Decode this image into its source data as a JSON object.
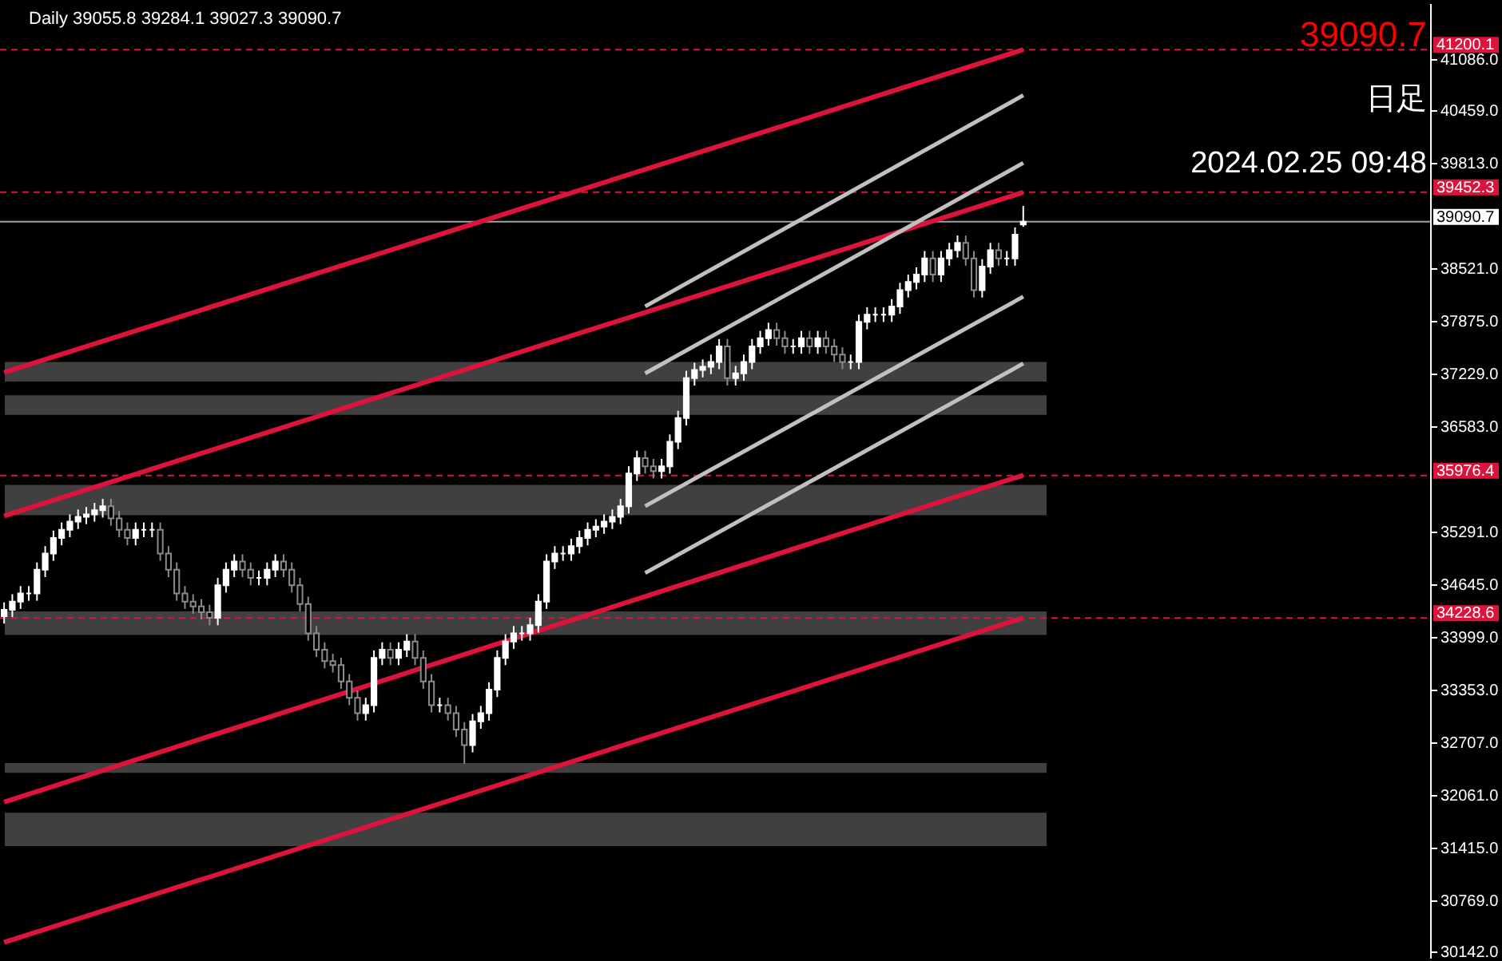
{
  "chart_data": {
    "type": "candlestick",
    "title": "Daily  39055.8 39284.1 39027.3 39090.7",
    "annotations": [
      "39090.7",
      "日足",
      "2024.02.25 09:48"
    ],
    "categories": [
      null,
      null,
      null,
      null,
      null,
      null,
      null,
      null,
      null,
      null,
      null,
      null,
      null,
      null,
      null,
      null,
      null,
      null,
      null,
      null,
      null,
      null,
      null,
      null,
      null,
      null,
      null,
      null,
      null,
      null,
      null,
      null,
      null,
      null,
      null,
      null,
      null,
      null,
      null,
      null,
      null,
      null,
      null,
      null,
      null,
      null,
      null,
      null,
      null,
      null,
      null,
      null,
      null,
      null,
      null,
      null,
      null,
      null,
      null,
      null,
      null,
      null,
      null,
      null,
      null,
      null,
      null,
      null,
      null,
      null,
      null,
      null,
      null,
      null,
      null,
      null,
      null,
      null,
      null,
      null,
      null,
      null,
      null,
      null,
      null,
      null,
      null,
      null,
      null,
      null,
      null,
      null,
      null,
      null,
      null,
      null,
      null,
      null,
      null,
      null,
      null,
      null,
      null,
      null,
      null,
      null,
      null,
      null,
      null,
      null,
      null,
      null,
      null,
      null,
      null,
      null,
      null,
      null,
      null,
      null,
      null,
      null,
      null,
      null,
      null,
      null,
      null,
      null,
      null,
      null,
      null,
      null,
      null,
      null,
      null,
      null,
      null,
      null,
      null,
      null,
      null,
      null,
      null,
      null,
      null,
      null,
      null,
      null,
      null,
      null,
      null,
      null,
      null,
      null,
      null,
      null,
      null,
      null,
      null,
      null,
      null,
      null,
      null,
      null,
      null,
      null,
      null,
      null,
      null,
      null,
      null,
      null,
      null,
      null
    ],
    "ohlc": [
      [
        34250,
        34420,
        34160,
        34330
      ],
      [
        34330,
        34520,
        34240,
        34430
      ],
      [
        34430,
        34620,
        34340,
        34530
      ],
      [
        34530,
        34620,
        34440,
        34530
      ],
      [
        34530,
        34910,
        34440,
        34820
      ],
      [
        34820,
        35110,
        34730,
        35020
      ],
      [
        35020,
        35300,
        34930,
        35210
      ],
      [
        35210,
        35400,
        35120,
        35310
      ],
      [
        35310,
        35500,
        35220,
        35410
      ],
      [
        35410,
        35560,
        35320,
        35470
      ],
      [
        35470,
        35590,
        35380,
        35500
      ],
      [
        35500,
        35640,
        35410,
        35550
      ],
      [
        35550,
        35690,
        35460,
        35600
      ],
      [
        35600,
        35690,
        35360,
        35450
      ],
      [
        35450,
        35540,
        35220,
        35310
      ],
      [
        35310,
        35400,
        35120,
        35210
      ],
      [
        35210,
        35400,
        35120,
        35310
      ],
      [
        35310,
        35400,
        35220,
        35310
      ],
      [
        35310,
        35400,
        35220,
        35310
      ],
      [
        35310,
        35400,
        34930,
        35020
      ],
      [
        35020,
        35110,
        34730,
        34820
      ],
      [
        34820,
        34910,
        34440,
        34530
      ],
      [
        34530,
        34620,
        34340,
        34430
      ],
      [
        34430,
        34520,
        34280,
        34370
      ],
      [
        34370,
        34460,
        34210,
        34300
      ],
      [
        34300,
        34390,
        34140,
        34230
      ],
      [
        34230,
        34720,
        34140,
        34630
      ],
      [
        34630,
        34910,
        34540,
        34820
      ],
      [
        34820,
        35010,
        34730,
        34920
      ],
      [
        34920,
        35010,
        34730,
        34820
      ],
      [
        34820,
        34910,
        34630,
        34720
      ],
      [
        34720,
        34810,
        34630,
        34720
      ],
      [
        34720,
        34910,
        34630,
        34820
      ],
      [
        34820,
        35010,
        34730,
        34920
      ],
      [
        34920,
        35010,
        34730,
        34820
      ],
      [
        34820,
        34910,
        34540,
        34630
      ],
      [
        34630,
        34720,
        34310,
        34400
      ],
      [
        34400,
        34490,
        33950,
        34040
      ],
      [
        34040,
        34130,
        33750,
        33840
      ],
      [
        33840,
        33930,
        33610,
        33700
      ],
      [
        33700,
        33790,
        33560,
        33650
      ],
      [
        33650,
        33740,
        33360,
        33450
      ],
      [
        33450,
        33540,
        33160,
        33250
      ],
      [
        33250,
        33340,
        32970,
        33060
      ],
      [
        33060,
        33250,
        32970,
        33160
      ],
      [
        33160,
        33830,
        33070,
        33740
      ],
      [
        33740,
        33930,
        33650,
        33840
      ],
      [
        33840,
        33930,
        33650,
        33740
      ],
      [
        33740,
        33930,
        33650,
        33840
      ],
      [
        33840,
        34030,
        33750,
        33940
      ],
      [
        33940,
        34030,
        33650,
        33740
      ],
      [
        33740,
        33830,
        33360,
        33450
      ],
      [
        33450,
        33540,
        33070,
        33160
      ],
      [
        33160,
        33250,
        33070,
        33160
      ],
      [
        33160,
        33250,
        32970,
        33060
      ],
      [
        33060,
        33150,
        32770,
        32860
      ],
      [
        32860,
        32950,
        32440,
        32670
      ],
      [
        32670,
        33050,
        32580,
        32960
      ],
      [
        32960,
        33150,
        32870,
        33060
      ],
      [
        33060,
        33440,
        32970,
        33350
      ],
      [
        33350,
        33830,
        33260,
        33740
      ],
      [
        33740,
        34030,
        33650,
        33940
      ],
      [
        33940,
        34130,
        33850,
        34040
      ],
      [
        34040,
        34130,
        33950,
        34040
      ],
      [
        34040,
        34230,
        33950,
        34140
      ],
      [
        34140,
        34520,
        34050,
        34430
      ],
      [
        34430,
        35010,
        34340,
        34920
      ],
      [
        34920,
        35110,
        34830,
        35020
      ],
      [
        35020,
        35110,
        34930,
        35020
      ],
      [
        35020,
        35200,
        34930,
        35110
      ],
      [
        35110,
        35300,
        35020,
        35210
      ],
      [
        35210,
        35400,
        35120,
        35310
      ],
      [
        35310,
        35440,
        35220,
        35350
      ],
      [
        35350,
        35500,
        35260,
        35410
      ],
      [
        35410,
        35560,
        35320,
        35470
      ],
      [
        35470,
        35690,
        35380,
        35600
      ],
      [
        35600,
        36090,
        35510,
        36000
      ],
      [
        36000,
        36280,
        35910,
        36190
      ],
      [
        36190,
        36280,
        36000,
        36090
      ],
      [
        36090,
        36180,
        35940,
        36030
      ],
      [
        36030,
        36180,
        35940,
        36090
      ],
      [
        36090,
        36480,
        36000,
        36390
      ],
      [
        36390,
        36770,
        36300,
        36680
      ],
      [
        36680,
        37260,
        36590,
        37170
      ],
      [
        37170,
        37360,
        37080,
        37270
      ],
      [
        37270,
        37400,
        37180,
        37310
      ],
      [
        37310,
        37460,
        37220,
        37370
      ],
      [
        37370,
        37650,
        37280,
        37560
      ],
      [
        37560,
        37650,
        37080,
        37170
      ],
      [
        37170,
        37320,
        37080,
        37230
      ],
      [
        37230,
        37460,
        37140,
        37370
      ],
      [
        37370,
        37650,
        37280,
        37560
      ],
      [
        37560,
        37750,
        37470,
        37660
      ],
      [
        37660,
        37850,
        37570,
        37760
      ],
      [
        37760,
        37850,
        37570,
        37660
      ],
      [
        37660,
        37750,
        37470,
        37560
      ],
      [
        37560,
        37650,
        37470,
        37560
      ],
      [
        37560,
        37750,
        37470,
        37660
      ],
      [
        37660,
        37750,
        37470,
        37560
      ],
      [
        37560,
        37750,
        37470,
        37660
      ],
      [
        37660,
        37750,
        37470,
        37560
      ],
      [
        37560,
        37650,
        37370,
        37460
      ],
      [
        37460,
        37550,
        37280,
        37370
      ],
      [
        37370,
        37460,
        37280,
        37370
      ],
      [
        37370,
        37950,
        37280,
        37860
      ],
      [
        37860,
        38040,
        37770,
        37950
      ],
      [
        37950,
        38040,
        37860,
        37950
      ],
      [
        37950,
        38040,
        37860,
        37950
      ],
      [
        37950,
        38140,
        37860,
        38050
      ],
      [
        38050,
        38340,
        37960,
        38250
      ],
      [
        38250,
        38440,
        38160,
        38350
      ],
      [
        38350,
        38530,
        38260,
        38440
      ],
      [
        38440,
        38730,
        38350,
        38640
      ],
      [
        38640,
        38730,
        38350,
        38440
      ],
      [
        38440,
        38730,
        38350,
        38640
      ],
      [
        38640,
        38830,
        38550,
        38740
      ],
      [
        38740,
        38920,
        38650,
        38830
      ],
      [
        38830,
        38920,
        38550,
        38640
      ],
      [
        38640,
        38730,
        38160,
        38250
      ],
      [
        38250,
        38630,
        38160,
        38540
      ],
      [
        38540,
        38830,
        38450,
        38740
      ],
      [
        38740,
        38830,
        38550,
        38640
      ],
      [
        38640,
        38730,
        38550,
        38640
      ],
      [
        38640,
        39020,
        38550,
        38930
      ],
      [
        39055.8,
        39284.1,
        39027.3,
        39090.7
      ],
      null,
      null,
      null,
      null,
      null,
      null,
      null,
      null,
      null,
      null,
      null,
      null,
      null,
      null,
      null,
      null,
      null,
      null,
      null,
      null,
      null,
      null,
      null,
      null,
      null,
      null,
      null,
      null,
      null,
      null,
      null,
      null,
      null,
      null,
      null,
      null,
      null,
      null,
      null,
      null,
      null,
      null,
      null,
      null,
      null,
      null,
      null,
      null,
      null
    ],
    "series": [
      {
        "type": "line",
        "color": "#dc143c",
        "values": [
          37240,
          null,
          null,
          null,
          null,
          null,
          null,
          null,
          null,
          null,
          null,
          null,
          null,
          null,
          null,
          null,
          null,
          null,
          null,
          null,
          null,
          null,
          null,
          null,
          null,
          null,
          null,
          null,
          null,
          null,
          null,
          null,
          null,
          null,
          null,
          null,
          null,
          null,
          null,
          null,
          null,
          null,
          null,
          null,
          null,
          null,
          null,
          null,
          null,
          null,
          null,
          null,
          null,
          null,
          null,
          null,
          null,
          null,
          null,
          null,
          null,
          null,
          null,
          null,
          null,
          null,
          null,
          null,
          null,
          null,
          null,
          null,
          null,
          null,
          null,
          null,
          null,
          null,
          null,
          null,
          null,
          null,
          null,
          null,
          null,
          null,
          null,
          null,
          null,
          null,
          null,
          null,
          null,
          null,
          null,
          null,
          null,
          null,
          null,
          null,
          null,
          null,
          null,
          null,
          null,
          null,
          null,
          null,
          null,
          null,
          null,
          null,
          null,
          null,
          null,
          null,
          null,
          null,
          null,
          null,
          null,
          null,
          null,
          null,
          41200,
          null,
          null,
          null,
          null,
          null,
          null,
          null,
          null,
          null,
          null,
          null,
          null,
          null,
          null,
          null,
          null,
          null,
          null,
          null,
          null,
          null,
          null,
          null,
          null,
          null,
          null,
          null,
          null,
          null,
          null,
          null,
          null,
          null,
          null,
          null,
          null,
          null,
          null,
          null,
          null,
          null,
          null,
          null,
          null,
          null,
          null,
          null,
          null,
          null
        ]
      },
      {
        "type": "line",
        "color": "#dc143c",
        "values": [
          35480,
          null,
          null,
          null,
          null,
          null,
          null,
          null,
          null,
          null,
          null,
          null,
          null,
          null,
          null,
          null,
          null,
          null,
          null,
          null,
          null,
          null,
          null,
          null,
          null,
          null,
          null,
          null,
          null,
          null,
          null,
          null,
          null,
          null,
          null,
          null,
          null,
          null,
          null,
          null,
          null,
          null,
          null,
          null,
          null,
          null,
          null,
          null,
          null,
          null,
          null,
          null,
          null,
          null,
          null,
          null,
          null,
          null,
          null,
          null,
          null,
          null,
          null,
          null,
          null,
          null,
          null,
          null,
          null,
          null,
          null,
          null,
          null,
          null,
          null,
          null,
          null,
          null,
          null,
          null,
          null,
          null,
          null,
          null,
          null,
          null,
          null,
          null,
          null,
          null,
          null,
          null,
          null,
          null,
          null,
          null,
          null,
          null,
          null,
          null,
          null,
          null,
          null,
          null,
          null,
          null,
          null,
          null,
          null,
          null,
          null,
          null,
          null,
          null,
          null,
          null,
          null,
          null,
          null,
          null,
          null,
          null,
          null,
          null,
          39450,
          null,
          null,
          null,
          null,
          null,
          null,
          null,
          null,
          null,
          null,
          null,
          null,
          null,
          null,
          null,
          null,
          null,
          null,
          null,
          null,
          null,
          null,
          null,
          null,
          null,
          null,
          null,
          null,
          null,
          null,
          null,
          null,
          null,
          null,
          null,
          null,
          null,
          null,
          null,
          null,
          null,
          null,
          null,
          null,
          null,
          null,
          null,
          null,
          null
        ]
      },
      {
        "type": "line",
        "color": "#dc143c",
        "values": [
          31970,
          null,
          null,
          null,
          null,
          null,
          null,
          null,
          null,
          null,
          null,
          null,
          null,
          null,
          null,
          null,
          null,
          null,
          null,
          null,
          null,
          null,
          null,
          null,
          null,
          null,
          null,
          null,
          null,
          null,
          null,
          null,
          null,
          null,
          null,
          null,
          null,
          null,
          null,
          null,
          null,
          null,
          null,
          null,
          null,
          null,
          null,
          null,
          null,
          null,
          null,
          null,
          null,
          null,
          null,
          null,
          null,
          null,
          null,
          null,
          null,
          null,
          null,
          null,
          null,
          null,
          null,
          null,
          null,
          null,
          null,
          null,
          null,
          null,
          null,
          null,
          null,
          null,
          null,
          null,
          null,
          null,
          null,
          null,
          null,
          null,
          null,
          null,
          null,
          null,
          null,
          null,
          null,
          null,
          null,
          null,
          null,
          null,
          null,
          null,
          null,
          null,
          null,
          null,
          null,
          null,
          null,
          null,
          null,
          null,
          null,
          null,
          null,
          null,
          null,
          null,
          null,
          null,
          null,
          null,
          null,
          null,
          null,
          null,
          35980,
          null,
          null,
          null,
          null,
          null,
          null,
          null,
          null,
          null,
          null,
          null,
          null,
          null,
          null,
          null,
          null,
          null,
          null,
          null,
          null,
          null,
          null,
          null,
          null,
          null,
          null,
          null,
          null,
          null,
          null,
          null,
          null,
          null,
          null,
          null,
          null,
          null,
          null,
          null,
          null,
          null,
          null,
          null,
          null,
          null,
          null,
          null,
          null,
          null
        ]
      },
      {
        "type": "line",
        "color": "#dc143c",
        "values": [
          30250,
          null,
          null,
          null,
          null,
          null,
          null,
          null,
          null,
          null,
          null,
          null,
          null,
          null,
          null,
          null,
          null,
          null,
          null,
          null,
          null,
          null,
          null,
          null,
          null,
          null,
          null,
          null,
          null,
          null,
          null,
          null,
          null,
          null,
          null,
          null,
          null,
          null,
          null,
          null,
          null,
          null,
          null,
          null,
          null,
          null,
          null,
          null,
          null,
          null,
          null,
          null,
          null,
          null,
          null,
          null,
          null,
          null,
          null,
          null,
          null,
          null,
          null,
          null,
          null,
          null,
          null,
          null,
          null,
          null,
          null,
          null,
          null,
          null,
          null,
          null,
          null,
          null,
          null,
          null,
          null,
          null,
          null,
          null,
          null,
          null,
          null,
          null,
          null,
          null,
          null,
          null,
          null,
          null,
          null,
          null,
          null,
          null,
          null,
          null,
          null,
          null,
          null,
          null,
          null,
          null,
          null,
          null,
          null,
          null,
          null,
          null,
          null,
          null,
          null,
          null,
          null,
          null,
          null,
          null,
          null,
          null,
          null,
          null,
          34230,
          null,
          null,
          null,
          null,
          null,
          null,
          null,
          null,
          null,
          null,
          null,
          null,
          null,
          null,
          null,
          null,
          null,
          null,
          null,
          null,
          null,
          null,
          null,
          null,
          null,
          null,
          null,
          null,
          null,
          null,
          null,
          null,
          null,
          null,
          null,
          null,
          null,
          null,
          null,
          null,
          null,
          null,
          null,
          null,
          null,
          null,
          null,
          null,
          null
        ]
      },
      {
        "type": "line",
        "color": "#c0c0c0",
        "values": [
          null,
          null,
          null,
          null,
          null,
          null,
          null,
          null,
          null,
          null,
          null,
          null,
          null,
          null,
          null,
          null,
          null,
          null,
          null,
          null,
          null,
          null,
          null,
          null,
          null,
          null,
          null,
          null,
          null,
          null,
          null,
          null,
          null,
          null,
          null,
          null,
          null,
          null,
          null,
          null,
          null,
          null,
          null,
          null,
          null,
          null,
          null,
          null,
          null,
          null,
          null,
          null,
          null,
          null,
          null,
          null,
          null,
          null,
          null,
          null,
          null,
          null,
          null,
          null,
          null,
          null,
          null,
          null,
          null,
          null,
          null,
          null,
          null,
          null,
          null,
          null,
          null,
          null,
          38050,
          null,
          null,
          null,
          null,
          null,
          null,
          null,
          null,
          null,
          null,
          null,
          null,
          null,
          null,
          null,
          null,
          null,
          null,
          null,
          null,
          null,
          null,
          null,
          null,
          null,
          null,
          null,
          null,
          null,
          null,
          null,
          null,
          null,
          null,
          null,
          null,
          null,
          null,
          null,
          null,
          null,
          null,
          null,
          null,
          null,
          40640,
          null,
          null,
          null,
          null,
          null,
          null,
          null,
          null,
          null,
          null,
          null,
          null,
          null,
          null,
          null,
          null,
          null,
          null,
          null,
          null,
          null,
          null,
          null,
          null,
          null,
          null,
          null,
          null,
          null,
          null,
          null,
          null,
          null,
          null,
          null,
          null,
          null,
          null,
          null,
          null,
          null,
          null,
          null,
          null,
          null,
          null,
          null,
          null,
          null
        ]
      },
      {
        "type": "line",
        "color": "#c0c0c0",
        "values": [
          null,
          null,
          null,
          null,
          null,
          null,
          null,
          null,
          null,
          null,
          null,
          null,
          null,
          null,
          null,
          null,
          null,
          null,
          null,
          null,
          null,
          null,
          null,
          null,
          null,
          null,
          null,
          null,
          null,
          null,
          null,
          null,
          null,
          null,
          null,
          null,
          null,
          null,
          null,
          null,
          null,
          null,
          null,
          null,
          null,
          null,
          null,
          null,
          null,
          null,
          null,
          null,
          null,
          null,
          null,
          null,
          null,
          null,
          null,
          null,
          null,
          null,
          null,
          null,
          null,
          null,
          null,
          null,
          null,
          null,
          null,
          null,
          null,
          null,
          null,
          null,
          null,
          null,
          37230,
          null,
          null,
          null,
          null,
          null,
          null,
          null,
          null,
          null,
          null,
          null,
          null,
          null,
          null,
          null,
          null,
          null,
          null,
          null,
          null,
          null,
          null,
          null,
          null,
          null,
          null,
          null,
          null,
          null,
          null,
          null,
          null,
          null,
          null,
          null,
          null,
          null,
          null,
          null,
          null,
          null,
          null,
          null,
          null,
          null,
          39810,
          null,
          null,
          null,
          null,
          null,
          null,
          null,
          null,
          null,
          null,
          null,
          null,
          null,
          null,
          null,
          null,
          null,
          null,
          null,
          null,
          null,
          null,
          null,
          null,
          null,
          null,
          null,
          null,
          null,
          null,
          null,
          null,
          null,
          null,
          null,
          null,
          null,
          null,
          null,
          null,
          null,
          null,
          null,
          null,
          null,
          null,
          null,
          null,
          null
        ]
      },
      {
        "type": "line",
        "color": "#c0c0c0",
        "values": [
          null,
          null,
          null,
          null,
          null,
          null,
          null,
          null,
          null,
          null,
          null,
          null,
          null,
          null,
          null,
          null,
          null,
          null,
          null,
          null,
          null,
          null,
          null,
          null,
          null,
          null,
          null,
          null,
          null,
          null,
          null,
          null,
          null,
          null,
          null,
          null,
          null,
          null,
          null,
          null,
          null,
          null,
          null,
          null,
          null,
          null,
          null,
          null,
          null,
          null,
          null,
          null,
          null,
          null,
          null,
          null,
          null,
          null,
          null,
          null,
          null,
          null,
          null,
          null,
          null,
          null,
          null,
          null,
          null,
          null,
          null,
          null,
          null,
          null,
          null,
          null,
          null,
          null,
          35600,
          null,
          null,
          null,
          null,
          null,
          null,
          null,
          null,
          null,
          null,
          null,
          null,
          null,
          null,
          null,
          null,
          null,
          null,
          null,
          null,
          null,
          null,
          null,
          null,
          null,
          null,
          null,
          null,
          null,
          null,
          null,
          null,
          null,
          null,
          null,
          null,
          null,
          null,
          null,
          null,
          null,
          null,
          null,
          null,
          null,
          38170,
          null,
          null,
          null,
          null,
          null,
          null,
          null,
          null,
          null,
          null,
          null,
          null,
          null,
          null,
          null,
          null,
          null,
          null,
          null,
          null,
          null,
          null,
          null,
          null,
          null,
          null,
          null,
          null,
          null,
          null,
          null,
          null,
          null,
          null,
          null,
          null,
          null,
          null,
          null,
          null,
          null,
          null,
          null,
          null,
          null,
          null,
          null,
          null,
          null
        ]
      },
      {
        "type": "line",
        "color": "#c0c0c0",
        "values": [
          null,
          null,
          null,
          null,
          null,
          null,
          null,
          null,
          null,
          null,
          null,
          null,
          null,
          null,
          null,
          null,
          null,
          null,
          null,
          null,
          null,
          null,
          null,
          null,
          null,
          null,
          null,
          null,
          null,
          null,
          null,
          null,
          null,
          null,
          null,
          null,
          null,
          null,
          null,
          null,
          null,
          null,
          null,
          null,
          null,
          null,
          null,
          null,
          null,
          null,
          null,
          null,
          null,
          null,
          null,
          null,
          null,
          null,
          null,
          null,
          null,
          null,
          null,
          null,
          null,
          null,
          null,
          null,
          null,
          null,
          null,
          null,
          null,
          null,
          null,
          null,
          null,
          null,
          34780,
          null,
          null,
          null,
          null,
          null,
          null,
          null,
          null,
          null,
          null,
          null,
          null,
          null,
          null,
          null,
          null,
          null,
          null,
          null,
          null,
          null,
          null,
          null,
          null,
          null,
          null,
          null,
          null,
          null,
          null,
          null,
          null,
          null,
          null,
          null,
          null,
          null,
          null,
          null,
          null,
          null,
          null,
          null,
          null,
          null,
          37350,
          null,
          null,
          null,
          null,
          null,
          null,
          null,
          null,
          null,
          null,
          null,
          null,
          null,
          null,
          null,
          null,
          null,
          null,
          null,
          null,
          null,
          null,
          null,
          null,
          null,
          null,
          null,
          null,
          null,
          null,
          null,
          null,
          null,
          null,
          null,
          null,
          null,
          null,
          null,
          null,
          null,
          null,
          null,
          null,
          null,
          null,
          null,
          null,
          null
        ]
      }
    ],
    "bands": [
      {
        "axis": "y",
        "from": 37130,
        "to": 37370,
        "color": "#404040"
      },
      {
        "axis": "y",
        "from": 36720,
        "to": 36960,
        "color": "#404040"
      },
      {
        "axis": "y",
        "from": 35490,
        "to": 35860,
        "color": "#404040"
      },
      {
        "axis": "y",
        "from": 34020,
        "to": 34310,
        "color": "#404040"
      },
      {
        "axis": "y",
        "from": 32330,
        "to": 32450,
        "color": "#404040"
      },
      {
        "axis": "y",
        "from": 31430,
        "to": 31840,
        "color": "#404040"
      }
    ],
    "ref_lines": [
      {
        "axis": "y",
        "value": 41200.1,
        "label": "41200.1",
        "color": "#dc143c",
        "line_style": "dashed"
      },
      {
        "axis": "y",
        "value": 39452.3,
        "label": "39452.3",
        "color": "#dc143c",
        "line_style": "dashed"
      },
      {
        "axis": "y",
        "value": 35976.4,
        "label": "35976.4",
        "color": "#dc143c",
        "line_style": "dashed"
      },
      {
        "axis": "y",
        "value": 34228.6,
        "label": "34228.6",
        "color": "#dc143c",
        "line_style": "dashed"
      },
      {
        "axis": "y",
        "value": 39090.7,
        "label": "39090.7",
        "color": "#9aa4ad",
        "line_style": "solid"
      }
    ],
    "ylim": [
      30060,
      41770
    ],
    "yticks": [
      {
        "value": 41086,
        "label": "41086.0"
      },
      {
        "value": 40459,
        "label": "40459.0"
      },
      {
        "value": 39813,
        "label": "39813.0"
      },
      {
        "value": 38521,
        "label": "38521.0"
      },
      {
        "value": 37875,
        "label": "37875.0"
      },
      {
        "value": 37229,
        "label": "37229.0"
      },
      {
        "value": 36583,
        "label": "36583.0"
      },
      {
        "value": 35291,
        "label": "35291.0"
      },
      {
        "value": 34645,
        "label": "34645.0"
      },
      {
        "value": 33999,
        "label": "33999.0"
      },
      {
        "value": 33353,
        "label": "33353.0"
      },
      {
        "value": 32707,
        "label": "32707.0"
      },
      {
        "value": 32061,
        "label": "32061.0"
      },
      {
        "value": 31415,
        "label": "31415.0"
      },
      {
        "value": 30769,
        "label": "30769.0"
      },
      {
        "value": 30142,
        "label": "30142.0"
      }
    ],
    "tick_labels": "y",
    "grid": false
  }
}
